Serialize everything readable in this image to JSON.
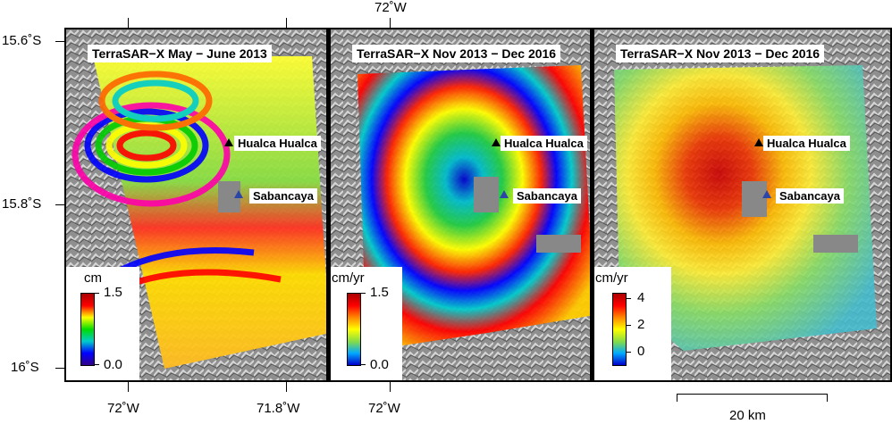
{
  "map": {
    "top_longitude": "72˚W",
    "latitudes": [
      "15.6˚S",
      "15.8˚S",
      "16˚S"
    ],
    "bottom_longitudes": [
      "72˚W",
      "71.8˚W",
      "72˚W"
    ],
    "scale_bar": "20 km",
    "volcanoes": [
      "Hualca Hualca",
      "Sabancaya"
    ],
    "panels": [
      {
        "title": "TerraSAR−X May − June 2013",
        "colorbar_unit": "cm",
        "colorbar_ticks": [
          "1.5",
          "0.0"
        ]
      },
      {
        "title": "TerraSAR−X Nov 2013 − Dec 2016",
        "colorbar_unit": "cm/yr",
        "colorbar_ticks": [
          "1.5",
          "0.0"
        ]
      },
      {
        "title": "TerraSAR−X Nov 2013 − Dec 2016",
        "colorbar_unit": "cm/yr",
        "colorbar_ticks": [
          "4",
          "2",
          "0"
        ]
      }
    ],
    "colors": {
      "colorbar_gradient": [
        "#ff0000",
        "#ff8800",
        "#ffff00",
        "#00cc00",
        "#00cccc",
        "#0000ff"
      ],
      "continuous_gradient": [
        "#cc0000",
        "#ff8800",
        "#ffff00",
        "#44dd88",
        "#00aaff",
        "#0000aa"
      ],
      "volcano_marker_1": "#000000",
      "volcano_marker_2": "#2c46a8"
    }
  }
}
